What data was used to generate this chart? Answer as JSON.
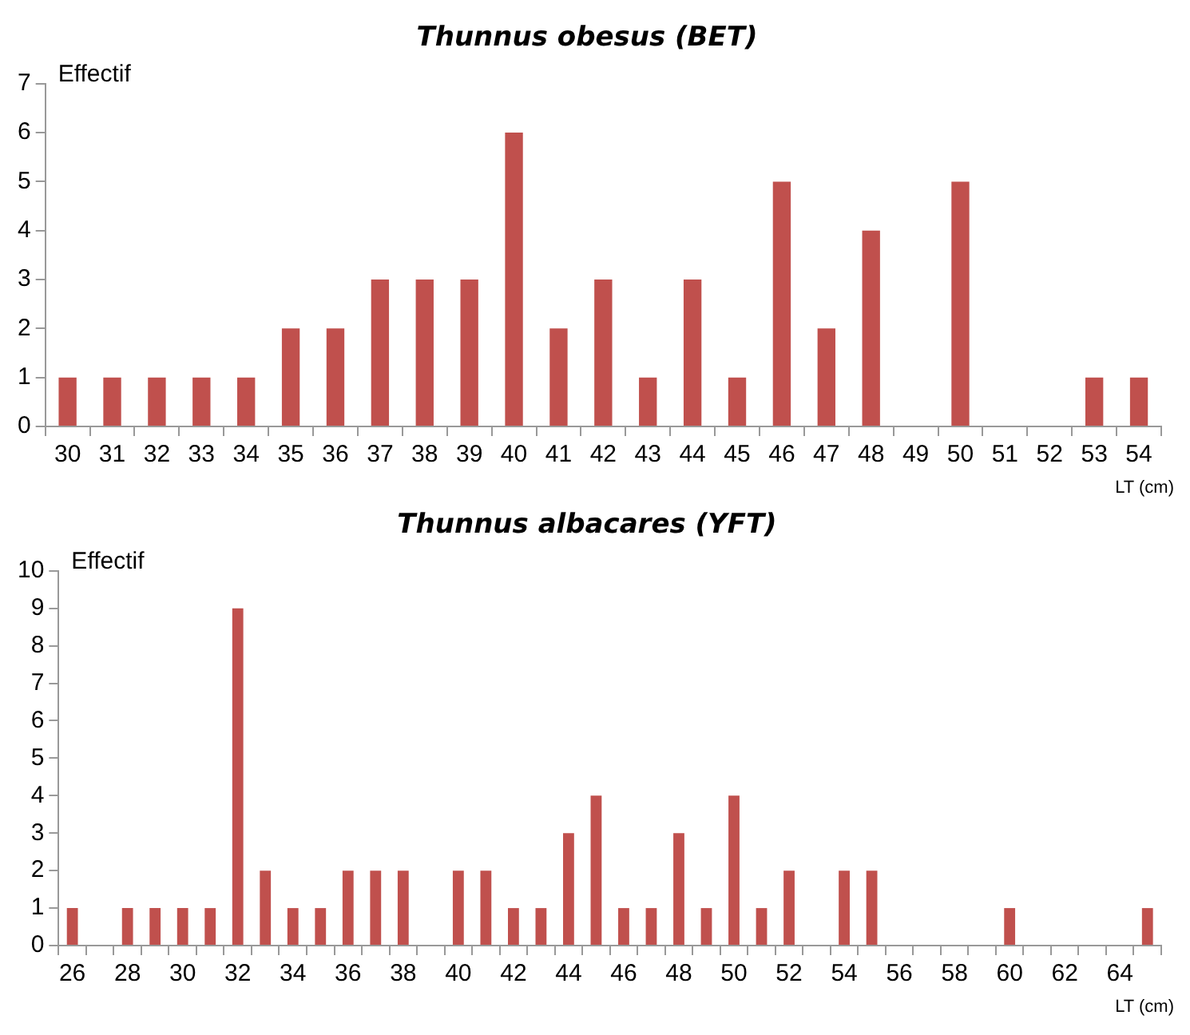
{
  "chart_data": [
    {
      "type": "bar",
      "title": "Thunnus obesus (BET)",
      "ylabel": "Effectif",
      "xlabel": "LT (cm)",
      "categories": [
        "30",
        "31",
        "32",
        "33",
        "34",
        "35",
        "36",
        "37",
        "38",
        "39",
        "40",
        "41",
        "42",
        "43",
        "44",
        "45",
        "46",
        "47",
        "48",
        "49",
        "50",
        "51",
        "52",
        "53",
        "54"
      ],
      "values": [
        1,
        1,
        1,
        1,
        1,
        2,
        2,
        3,
        3,
        3,
        6,
        2,
        3,
        1,
        3,
        1,
        5,
        2,
        4,
        0,
        5,
        0,
        0,
        1,
        1
      ],
      "color": "#c0504d",
      "ylim": [
        0,
        7
      ],
      "yticks": [
        0,
        1,
        2,
        3,
        4,
        5,
        6,
        7
      ],
      "grid": false,
      "legend": false
    },
    {
      "type": "bar",
      "title": "Thunnus albacares (YFT)",
      "ylabel": "Effectif",
      "xlabel": "LT (cm)",
      "categories": [
        "26",
        null,
        "28",
        null,
        "30",
        null,
        "32",
        null,
        "34",
        null,
        "36",
        null,
        "38",
        null,
        "40",
        null,
        "42",
        null,
        "44",
        null,
        "46",
        null,
        "48",
        null,
        "50",
        null,
        "52",
        null,
        "54",
        null,
        "56",
        null,
        "58",
        null,
        "60",
        null,
        "62",
        null,
        "64",
        null
      ],
      "values": [
        1,
        0,
        1,
        1,
        1,
        1,
        9,
        2,
        1,
        1,
        2,
        2,
        2,
        0,
        2,
        2,
        1,
        1,
        3,
        4,
        1,
        1,
        3,
        1,
        4,
        1,
        2,
        0,
        2,
        2,
        0,
        0,
        0,
        0,
        1,
        0,
        0,
        0,
        0,
        1
      ],
      "color": "#c0504d",
      "ylim": [
        0,
        10
      ],
      "yticks": [
        0,
        1,
        2,
        3,
        4,
        5,
        6,
        7,
        8,
        9,
        10
      ],
      "grid": false,
      "legend": false
    }
  ]
}
